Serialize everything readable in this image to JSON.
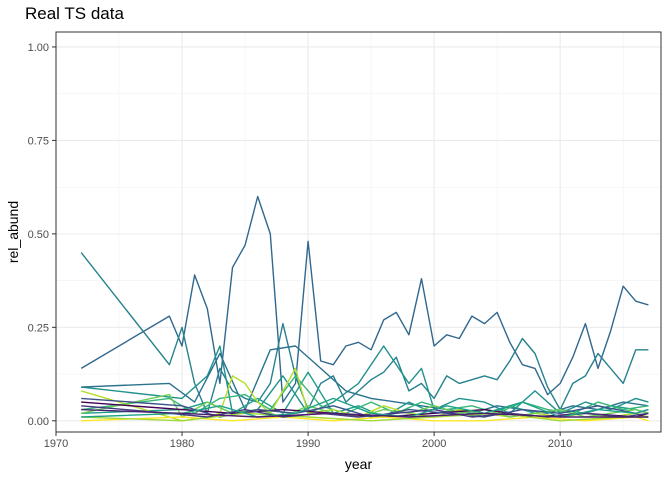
{
  "chart_data": {
    "type": "line",
    "title": "Real TS data",
    "xlabel": "year",
    "ylabel": "rel_abund",
    "xlim": [
      1970,
      2018
    ],
    "ylim": [
      -0.03,
      1.04
    ],
    "x_ticks": [
      1970,
      1980,
      1990,
      2000,
      2010
    ],
    "x_tick_labels": [
      "1970",
      "1980",
      "1990",
      "2000",
      "2010"
    ],
    "y_ticks": [
      0,
      0.25,
      0.5,
      0.75,
      1
    ],
    "y_tick_labels": [
      "0.00",
      "0.25",
      "0.50",
      "0.75",
      "1.00"
    ],
    "grid": true,
    "legend": "none",
    "series": [
      {
        "color": "#31688e",
        "x": [
          1972,
          1979,
          1980,
          1981,
          1982,
          1983,
          1984,
          1985,
          1986,
          1987,
          1988,
          1989,
          1990,
          1991,
          1992,
          1993,
          1994,
          1995,
          1996,
          1997,
          1998,
          1999,
          2000,
          2001,
          2002,
          2003,
          2004,
          2005,
          2006,
          2007,
          2008,
          2009,
          2010,
          2011,
          2012,
          2013,
          2014,
          2015,
          2016,
          2017
        ],
        "y": [
          0.14,
          0.28,
          0.2,
          0.39,
          0.3,
          0.1,
          0.41,
          0.47,
          0.6,
          0.5,
          0.05,
          0.1,
          0.48,
          0.16,
          0.15,
          0.2,
          0.21,
          0.19,
          0.27,
          0.29,
          0.23,
          0.38,
          0.2,
          0.23,
          0.22,
          0.28,
          0.26,
          0.29,
          0.21,
          0.15,
          0.14,
          0.07,
          0.1,
          0.17,
          0.26,
          0.14,
          0.24,
          0.36,
          0.32,
          0.31
        ]
      },
      {
        "color": "#26828e",
        "x": [
          1972,
          1979,
          1980,
          1981,
          1982,
          1983,
          1984,
          1985,
          1986,
          1987,
          1988,
          1989,
          1990,
          1991,
          1992,
          1993,
          1994,
          1995,
          1996,
          1997,
          1998,
          1999,
          2000,
          2001,
          2002,
          2003,
          2004,
          2005,
          2006,
          2007,
          2008,
          2009,
          2010,
          2011,
          2012,
          2013,
          2014,
          2015,
          2016,
          2017
        ],
        "y": [
          0.45,
          0.15,
          0.25,
          0.1,
          0.02,
          0.14,
          0.08,
          0.06,
          0.05,
          0.1,
          0.26,
          0.12,
          0.03,
          0.1,
          0.12,
          0.05,
          0.08,
          0.11,
          0.13,
          0.17,
          0.08,
          0.1,
          0.06,
          0.12,
          0.1,
          0.11,
          0.12,
          0.11,
          0.16,
          0.22,
          0.18,
          0.09,
          0.03,
          0.1,
          0.12,
          0.18,
          0.14,
          0.1,
          0.19,
          0.19
        ]
      },
      {
        "color": "#21918c",
        "x": [
          1972,
          1980,
          1982,
          1983,
          1984,
          1986,
          1988,
          1989,
          1990,
          1992,
          1994,
          1996,
          1998,
          1999,
          2000,
          2002,
          2004,
          2006,
          2008,
          2010,
          2012,
          2014,
          2016,
          2017
        ],
        "y": [
          0.09,
          0.06,
          0.12,
          0.2,
          0.02,
          0.03,
          0.12,
          0.07,
          0.02,
          0.05,
          0.1,
          0.2,
          0.1,
          0.14,
          0.03,
          0.06,
          0.05,
          0.02,
          0.08,
          0.02,
          0.05,
          0.03,
          0.06,
          0.05
        ]
      },
      {
        "color": "#2c728e",
        "x": [
          1972,
          1979,
          1981,
          1983,
          1985,
          1987,
          1989,
          1991,
          1993,
          1995,
          1997,
          1999,
          2001,
          2003,
          2005,
          2007,
          2009,
          2011,
          2013,
          2015,
          2017
        ],
        "y": [
          0.09,
          0.1,
          0.05,
          0.18,
          0.03,
          0.19,
          0.2,
          0.14,
          0.08,
          0.06,
          0.05,
          0.04,
          0.03,
          0.02,
          0.04,
          0.03,
          0.02,
          0.04,
          0.03,
          0.05,
          0.04
        ]
      },
      {
        "color": "#1f9e89",
        "x": [
          1972,
          1980,
          1982,
          1984,
          1986,
          1988,
          1990,
          1992,
          1994,
          1996,
          1998,
          2000,
          2002,
          2004,
          2006,
          2008,
          2010,
          2012,
          2014,
          2016,
          2017
        ],
        "y": [
          0.02,
          0.03,
          0.05,
          0.02,
          0.06,
          0.02,
          0.13,
          0.02,
          0.04,
          0.01,
          0.05,
          0.02,
          0.03,
          0.01,
          0.04,
          0.02,
          0.03,
          0.02,
          0.04,
          0.03,
          0.02
        ]
      },
      {
        "color": "#35b779",
        "x": [
          1972,
          1979,
          1981,
          1983,
          1985,
          1987,
          1989,
          1991,
          1993,
          1995,
          1997,
          1999,
          2001,
          2003,
          2005,
          2007,
          2009,
          2011,
          2013,
          2015,
          2017
        ],
        "y": [
          0.03,
          0.06,
          0.02,
          0.06,
          0.07,
          0.03,
          0.12,
          0.04,
          0.02,
          0.05,
          0.02,
          0.05,
          0.03,
          0.04,
          0.02,
          0.05,
          0.03,
          0.02,
          0.05,
          0.03,
          0.04
        ]
      },
      {
        "color": "#b5de2b",
        "x": [
          1972,
          1980,
          1982,
          1983,
          1984,
          1985,
          1986,
          1987,
          1988,
          1989,
          1990,
          1992,
          1994,
          1996,
          1998,
          2000,
          2002,
          2004,
          2006,
          2008,
          2010,
          2012,
          2014,
          2016,
          2017
        ],
        "y": [
          0.08,
          0.0,
          0.01,
          0.02,
          0.12,
          0.1,
          0.05,
          0.02,
          0.08,
          0.14,
          0.02,
          0.03,
          0.01,
          0.04,
          0.02,
          0.01,
          0.03,
          0.02,
          0.01,
          0.02,
          0.01,
          0.02,
          0.01,
          0.02,
          0.01
        ]
      },
      {
        "color": "#6ece58",
        "x": [
          1972,
          1979,
          1980,
          1981,
          1982,
          1984,
          1986,
          1988,
          1990,
          1992,
          1994,
          1996,
          1998,
          2000,
          2002,
          2004,
          2006,
          2008,
          2010,
          2012,
          2014,
          2016,
          2017
        ],
        "y": [
          0.02,
          0.07,
          0.01,
          0.03,
          0.05,
          0.02,
          0.03,
          0.01,
          0.04,
          0.02,
          0.01,
          0.03,
          0.02,
          0.04,
          0.02,
          0.03,
          0.01,
          0.02,
          0.03,
          0.01,
          0.02,
          0.03,
          0.02
        ]
      },
      {
        "color": "#440154",
        "x": [
          1972,
          1980,
          1984,
          1988,
          1992,
          1996,
          2000,
          2004,
          2008,
          2012,
          2016,
          2017
        ],
        "y": [
          0.05,
          0.03,
          0.02,
          0.03,
          0.02,
          0.01,
          0.02,
          0.03,
          0.01,
          0.02,
          0.01,
          0.02
        ]
      },
      {
        "color": "#3b528b",
        "x": [
          1972,
          1980,
          1983,
          1986,
          1989,
          1992,
          1995,
          1998,
          2001,
          2004,
          2007,
          2010,
          2013,
          2016,
          2017
        ],
        "y": [
          0.06,
          0.04,
          0.01,
          0.03,
          0.02,
          0.04,
          0.01,
          0.03,
          0.02,
          0.01,
          0.03,
          0.02,
          0.04,
          0.02,
          0.03
        ]
      },
      {
        "color": "#fde725",
        "x": [
          1972,
          1980,
          1984,
          1988,
          1992,
          1996,
          2000,
          2004,
          2008,
          2012,
          2016,
          2017
        ],
        "y": [
          0.0,
          0.01,
          0.0,
          0.01,
          0.0,
          0.01,
          0.0,
          0.0,
          0.01,
          0.0,
          0.01,
          0.0
        ]
      },
      {
        "color": "#a0da39",
        "x": [
          1972,
          1980,
          1985,
          1990,
          1995,
          2000,
          2005,
          2010,
          2015,
          2017
        ],
        "y": [
          0.01,
          0.0,
          0.02,
          0.01,
          0.0,
          0.01,
          0.02,
          0.0,
          0.01,
          0.01
        ]
      },
      {
        "color": "#443983",
        "x": [
          1972,
          1979,
          1982,
          1985,
          1988,
          1991,
          1994,
          1997,
          2000,
          2003,
          2006,
          2009,
          2012,
          2015,
          2017
        ],
        "y": [
          0.04,
          0.02,
          0.01,
          0.03,
          0.01,
          0.02,
          0.01,
          0.02,
          0.03,
          0.01,
          0.02,
          0.01,
          0.02,
          0.01,
          0.02
        ]
      },
      {
        "color": "#1fa187",
        "x": [
          1972,
          1980,
          1983,
          1986,
          1989,
          1992,
          1995,
          1998,
          2001,
          2004,
          2007,
          2010,
          2013,
          2016,
          2017
        ],
        "y": [
          0.01,
          0.02,
          0.04,
          0.01,
          0.02,
          0.06,
          0.02,
          0.01,
          0.04,
          0.02,
          0.05,
          0.01,
          0.03,
          0.02,
          0.03
        ]
      },
      {
        "color": "#481f70",
        "x": [
          1972,
          1980,
          1986,
          1992,
          1998,
          2004,
          2010,
          2017
        ],
        "y": [
          0.03,
          0.02,
          0.01,
          0.02,
          0.01,
          0.02,
          0.01,
          0.01
        ]
      }
    ]
  }
}
